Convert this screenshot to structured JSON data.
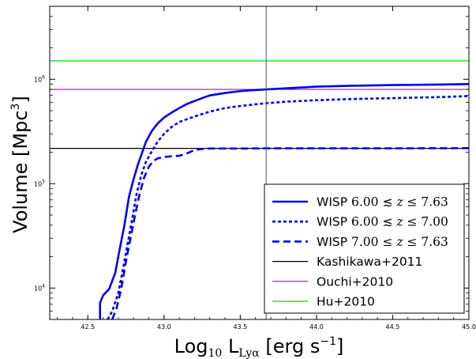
{
  "chart_data": {
    "type": "line",
    "xlabel": "Log₁₀ L_Lyα [erg s⁻¹]",
    "xlabel_parts": {
      "prefix": "Log",
      "sub": "10",
      "L": " L",
      "lsub": "Lyα",
      "units": " [erg s",
      "exp": "−1",
      "close": "]"
    },
    "ylabel": "Volume [Mpc³]",
    "ylabel_parts": {
      "main": "Volume [Mpc",
      "exp": "3",
      "close": "]"
    },
    "xlim": [
      42.25,
      45.0
    ],
    "ylim": [
      5000,
      5000000
    ],
    "yscale": "log",
    "grid": false,
    "legend_position": "lower-right",
    "x_ticks": [
      "42.5",
      "43.0",
      "43.5",
      "44.0",
      "44.5",
      "45.0"
    ],
    "x_tick_values": [
      42.5,
      43.0,
      43.5,
      44.0,
      44.5,
      45.0
    ],
    "y_ticks": [
      {
        "value": 10000,
        "base": "10",
        "exp": "4"
      },
      {
        "value": 100000,
        "base": "10",
        "exp": "5"
      },
      {
        "value": 1000000,
        "base": "10",
        "exp": "6"
      }
    ],
    "vline": {
      "x": 43.67,
      "color": "#555555"
    },
    "series": [
      {
        "name": "WISP 6.00 ≲ z ≤ 7.63",
        "legend_parts": {
          "prefix": "WISP ",
          "a": "6.00",
          "op1": " ≲ ",
          "z": "z",
          "op2": " ≤ ",
          "b": "7.63"
        },
        "color": "#0000ee",
        "style": "solid",
        "x": [
          42.58,
          42.58,
          42.6,
          42.64,
          42.68,
          42.71,
          42.74,
          42.77,
          42.8,
          42.83,
          42.86,
          42.88,
          42.92,
          42.96,
          43.0,
          43.05,
          43.1,
          43.15,
          43.2,
          43.25,
          43.3,
          43.4,
          43.5,
          43.6,
          43.67,
          43.8,
          44.0,
          44.2,
          44.5,
          44.8,
          45.0
        ],
        "y": [
          5000,
          7200,
          8500,
          9800,
          14000,
          24000,
          40000,
          75000,
          110000,
          155000,
          205000,
          250000,
          320000,
          380000,
          430000,
          480000,
          530000,
          580000,
          620000,
          660000,
          700000,
          740000,
          770000,
          790000,
          800000,
          820000,
          850000,
          865000,
          880000,
          890000,
          900000
        ]
      },
      {
        "name": "WISP 6.00 ≲ z ≤ 7.00",
        "legend_parts": {
          "prefix": "WISP ",
          "a": "6.00",
          "op1": " ≲ ",
          "z": "z",
          "op2": " ≤ ",
          "b": "7.00"
        },
        "color": "#0000ee",
        "style": "dotted",
        "x": [
          42.63,
          42.66,
          42.7,
          42.73,
          42.76,
          42.79,
          42.82,
          42.85,
          42.88,
          42.92,
          42.96,
          43.0,
          43.05,
          43.1,
          43.2,
          43.3,
          43.4,
          43.5,
          43.67,
          43.8,
          44.0,
          44.2,
          44.5,
          44.8,
          45.0
        ],
        "y": [
          5000,
          6000,
          9000,
          15000,
          26000,
          45000,
          80000,
          120000,
          160000,
          205000,
          255000,
          300000,
          350000,
          390000,
          440000,
          490000,
          530000,
          555000,
          590000,
          610000,
          630000,
          645000,
          660000,
          675000,
          690000
        ]
      },
      {
        "name": "WISP 7.00 ≤ z ≤ 7.63",
        "legend_parts": {
          "prefix": "WISP ",
          "a": "7.00",
          "op1": " ≤ ",
          "z": "z",
          "op2": " ≤ ",
          "b": "7.63"
        },
        "color": "#0000ee",
        "style": "dashed",
        "x": [
          42.66,
          42.69,
          42.72,
          42.75,
          42.78,
          42.81,
          42.84,
          42.87,
          42.9,
          42.93,
          42.96,
          43.0,
          43.05,
          43.1,
          43.15,
          43.2,
          43.25,
          43.3,
          43.5,
          43.67,
          44.0,
          44.5,
          45.0
        ],
        "y": [
          5000,
          6500,
          10000,
          18000,
          30000,
          50000,
          80000,
          115000,
          145000,
          165000,
          175000,
          180000,
          183000,
          185000,
          195000,
          210000,
          215000,
          217000,
          217000,
          218000,
          218000,
          218000,
          219000
        ]
      },
      {
        "name": "Kashikawa+2011",
        "color": "#000000",
        "style": "solid-thin",
        "x": [
          42.25,
          45.0
        ],
        "y": [
          218000,
          218000
        ]
      },
      {
        "name": "Ouchi+2010",
        "color": "#bf00bf",
        "style": "solid-thin",
        "x": [
          42.25,
          45.0
        ],
        "y": [
          800000,
          800000
        ]
      },
      {
        "name": "Hu+2010",
        "color": "#00dd00",
        "style": "solid-thin",
        "x": [
          42.25,
          45.0
        ],
        "y": [
          1500000,
          1500000
        ]
      }
    ]
  }
}
